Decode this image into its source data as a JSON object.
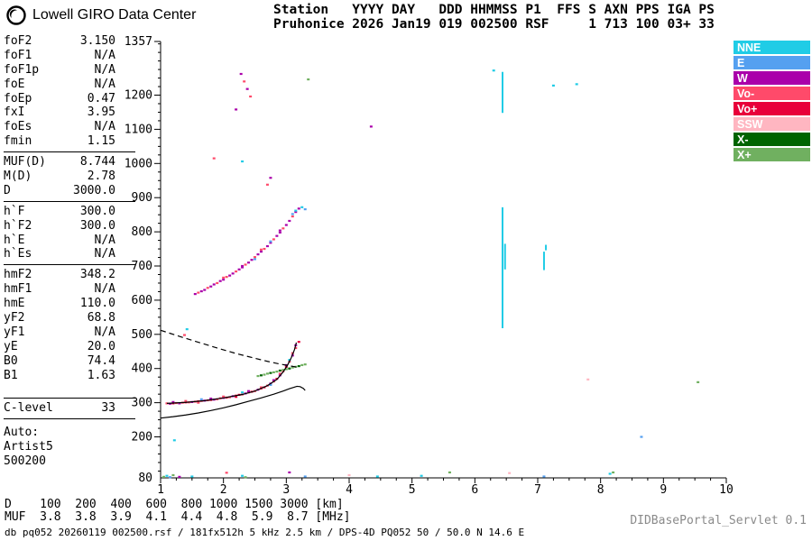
{
  "header": {
    "logo_text": "Lowell GIRO Data Center",
    "station_line1": "Station   YYYY DAY   DDD HHMMSS P1  FFS S AXN PPS IGA PS",
    "station_line2": "Pruhonice 2026 Jan19 019 002500 RSF     1 713 100 03+ 33"
  },
  "parameters": {
    "groups": [
      {
        "rows": [
          [
            "foF2",
            "3.150"
          ],
          [
            "foF1",
            "N/A"
          ],
          [
            "foF1p",
            "N/A"
          ],
          [
            "foE",
            "N/A"
          ],
          [
            "foEp",
            "0.47"
          ],
          [
            "fxI",
            "3.95"
          ],
          [
            "foEs",
            "N/A"
          ],
          [
            "fmin",
            "1.15"
          ]
        ]
      },
      {
        "rows": [
          [
            "MUF(D)",
            "8.744"
          ],
          [
            "M(D)",
            "2.78"
          ],
          [
            "D",
            "3000.0"
          ]
        ]
      },
      {
        "rows": [
          [
            "h`F",
            "300.0"
          ],
          [
            "h`F2",
            "300.0"
          ],
          [
            "h`E",
            "N/A"
          ],
          [
            "h`Es",
            "N/A"
          ]
        ]
      },
      {
        "rows": [
          [
            "hmF2",
            "348.2"
          ],
          [
            "hmF1",
            "N/A"
          ],
          [
            "hmE",
            "110.0"
          ],
          [
            "yF2",
            "68.8"
          ],
          [
            "yF1",
            "N/A"
          ],
          [
            "yE",
            "20.0"
          ],
          [
            "B0",
            "74.4"
          ],
          [
            "B1",
            "1.63"
          ]
        ]
      },
      {
        "rows": [
          [
            "C-level",
            "33"
          ]
        ]
      }
    ],
    "auto_label": "Auto:",
    "auto_lines": [
      "Artist5",
      "500200"
    ]
  },
  "muf_table": {
    "d_label": "D",
    "d_values": [
      "100",
      "200",
      "400",
      "600",
      "800",
      "1000",
      "1500",
      "3000"
    ],
    "d_unit": "[km]",
    "muf_label": "MUF",
    "muf_values": [
      "3.8",
      "3.8",
      "3.9",
      "4.1",
      "4.4",
      "4.8",
      "5.9",
      "8.7"
    ],
    "muf_unit": "[MHz]"
  },
  "footer": {
    "file_info": "db pq052 20260119 002500.rsf / 181fx512h 5 kHz 2.5 km / DPS-4D PQ052 50 / 50.0 N 14.6 E",
    "servlet": "DIDBasePortal_Servlet 0.1"
  },
  "chart_data": {
    "type": "scatter",
    "description": "Ionogram: echo virtual height [km] vs frequency [MHz]",
    "grid": false,
    "legend_position": "top-right-outside",
    "x_axis": {
      "min": 1,
      "max": 10,
      "major_ticks": [
        1,
        2,
        3,
        4,
        5,
        6,
        7,
        8,
        9,
        10
      ],
      "minor_step": 0.25
    },
    "y_axis": {
      "min": 80,
      "max": 1357,
      "tick_labels": [
        1357,
        1200,
        1100,
        1000,
        900,
        800,
        700,
        600,
        500,
        400,
        300,
        200,
        80
      ],
      "minor_step": 25
    },
    "legend": [
      {
        "label": "NNE",
        "color": "#20CCE6"
      },
      {
        "label": "E",
        "color": "#55A0F0"
      },
      {
        "label": "W",
        "color": "#AA00AA"
      },
      {
        "label": "Vo-",
        "color": "#FF4A6A"
      },
      {
        "label": "Vo+",
        "color": "#E8003A"
      },
      {
        "label": "SSW",
        "color": "#FFB6C1"
      },
      {
        "label": "X-",
        "color": "#006400"
      },
      {
        "label": "X+",
        "color": "#70B060"
      }
    ],
    "series": [
      {
        "name": "F-layer o-mode trace",
        "points": [
          [
            1.1,
            298,
            3
          ],
          [
            1.15,
            297,
            2
          ],
          [
            1.2,
            298,
            4
          ],
          [
            1.2,
            302,
            2
          ],
          [
            1.25,
            299,
            3
          ],
          [
            1.3,
            298,
            2
          ],
          [
            1.35,
            300,
            3
          ],
          [
            1.4,
            301,
            4
          ],
          [
            1.4,
            305,
            3
          ],
          [
            1.45,
            301,
            3
          ],
          [
            1.5,
            302,
            2
          ],
          [
            1.55,
            303,
            3
          ],
          [
            1.6,
            304,
            4
          ],
          [
            1.6,
            300,
            3
          ],
          [
            1.65,
            305,
            3
          ],
          [
            1.65,
            310,
            1
          ],
          [
            1.7,
            306,
            2
          ],
          [
            1.75,
            307,
            3
          ],
          [
            1.8,
            308,
            4
          ],
          [
            1.8,
            312,
            2
          ],
          [
            1.85,
            309,
            2
          ],
          [
            1.9,
            310,
            3
          ],
          [
            1.95,
            313,
            3
          ],
          [
            2.0,
            314,
            2
          ],
          [
            2.0,
            318,
            3
          ],
          [
            2.05,
            315,
            4
          ],
          [
            2.1,
            316,
            3
          ],
          [
            2.15,
            319,
            2
          ],
          [
            2.2,
            321,
            3
          ],
          [
            2.2,
            317,
            4
          ],
          [
            2.25,
            323,
            4
          ],
          [
            2.3,
            324,
            3
          ],
          [
            2.3,
            330,
            0
          ],
          [
            2.35,
            327,
            2
          ],
          [
            2.4,
            330,
            3
          ],
          [
            2.4,
            334,
            2
          ],
          [
            2.45,
            332,
            4
          ],
          [
            2.5,
            334,
            3
          ],
          [
            2.55,
            338,
            2
          ],
          [
            2.6,
            341,
            3
          ],
          [
            2.6,
            345,
            3
          ],
          [
            2.65,
            345,
            4
          ],
          [
            2.7,
            350,
            3
          ],
          [
            2.75,
            356,
            2
          ],
          [
            2.75,
            352,
            1
          ],
          [
            2.8,
            362,
            3
          ],
          [
            2.8,
            366,
            2
          ],
          [
            2.85,
            370,
            4
          ],
          [
            2.9,
            380,
            2
          ],
          [
            2.9,
            385,
            3
          ],
          [
            2.95,
            392,
            3
          ],
          [
            3.0,
            405,
            4
          ],
          [
            3.0,
            410,
            2
          ],
          [
            3.05,
            420,
            3
          ],
          [
            3.05,
            425,
            0
          ],
          [
            3.1,
            438,
            2
          ],
          [
            3.1,
            445,
            3
          ],
          [
            3.15,
            460,
            3
          ],
          [
            3.15,
            468,
            2
          ],
          [
            3.2,
            478,
            4
          ]
        ]
      },
      {
        "name": "F-layer x-mode trace",
        "points": [
          [
            2.55,
            378,
            7
          ],
          [
            2.6,
            380,
            6
          ],
          [
            2.65,
            382,
            7
          ],
          [
            2.7,
            385,
            7
          ],
          [
            2.75,
            387,
            6
          ],
          [
            2.8,
            389,
            7
          ],
          [
            2.85,
            391,
            7
          ],
          [
            2.9,
            394,
            6
          ],
          [
            2.95,
            396,
            7
          ],
          [
            3.0,
            398,
            7
          ],
          [
            3.05,
            400,
            6
          ],
          [
            3.1,
            403,
            7
          ],
          [
            3.15,
            405,
            7
          ],
          [
            3.2,
            407,
            6
          ],
          [
            3.25,
            410,
            7
          ],
          [
            3.3,
            412,
            7
          ]
        ]
      },
      {
        "name": "second-hop trace",
        "points": [
          [
            1.55,
            618,
            2
          ],
          [
            1.6,
            622,
            3
          ],
          [
            1.65,
            626,
            2
          ],
          [
            1.7,
            630,
            2
          ],
          [
            1.75,
            636,
            3
          ],
          [
            1.8,
            640,
            2
          ],
          [
            1.85,
            646,
            2
          ],
          [
            1.9,
            650,
            3
          ],
          [
            1.95,
            656,
            2
          ],
          [
            2.0,
            660,
            2
          ],
          [
            2.0,
            666,
            3
          ],
          [
            2.05,
            668,
            3
          ],
          [
            2.1,
            672,
            2
          ],
          [
            2.15,
            678,
            2
          ],
          [
            2.2,
            684,
            3
          ],
          [
            2.25,
            690,
            2
          ],
          [
            2.3,
            696,
            2
          ],
          [
            2.3,
            700,
            2
          ],
          [
            2.35,
            704,
            3
          ],
          [
            2.4,
            710,
            2
          ],
          [
            2.45,
            718,
            2
          ],
          [
            2.5,
            726,
            3
          ],
          [
            2.5,
            720,
            1
          ],
          [
            2.55,
            734,
            2
          ],
          [
            2.6,
            742,
            2
          ],
          [
            2.6,
            748,
            3
          ],
          [
            2.65,
            750,
            3
          ],
          [
            2.7,
            758,
            2
          ],
          [
            2.75,
            768,
            2
          ],
          [
            2.75,
            772,
            1
          ],
          [
            2.8,
            778,
            3
          ],
          [
            2.85,
            788,
            2
          ],
          [
            2.9,
            798,
            2
          ],
          [
            2.9,
            804,
            2
          ],
          [
            2.95,
            810,
            3
          ],
          [
            3.0,
            820,
            2
          ],
          [
            3.05,
            832,
            2
          ],
          [
            3.1,
            845,
            3
          ],
          [
            3.1,
            852,
            1
          ],
          [
            3.15,
            858,
            2
          ],
          [
            3.15,
            862,
            0
          ],
          [
            3.2,
            868,
            2
          ],
          [
            3.25,
            872,
            0
          ],
          [
            3.3,
            866,
            1
          ]
        ]
      },
      {
        "name": "scattered echoes",
        "points": [
          [
            1.05,
            83,
            7
          ],
          [
            1.1,
            86,
            0
          ],
          [
            1.15,
            82,
            1
          ],
          [
            1.2,
            88,
            7
          ],
          [
            1.3,
            83,
            2
          ],
          [
            1.5,
            84,
            0
          ],
          [
            2.05,
            95,
            3
          ],
          [
            2.3,
            86,
            0
          ],
          [
            2.35,
            82,
            7
          ],
          [
            3.05,
            96,
            2
          ],
          [
            3.3,
            84,
            1
          ],
          [
            4.0,
            88,
            5
          ],
          [
            4.45,
            84,
            0
          ],
          [
            5.15,
            86,
            0
          ],
          [
            5.6,
            96,
            7
          ],
          [
            6.55,
            94,
            5
          ],
          [
            7.1,
            84,
            1
          ],
          [
            8.15,
            92,
            0
          ],
          [
            8.2,
            96,
            7
          ],
          [
            1.22,
            190,
            0
          ],
          [
            1.38,
            498,
            3
          ],
          [
            1.42,
            515,
            0
          ],
          [
            1.85,
            1015,
            3
          ],
          [
            2.3,
            1006,
            0
          ],
          [
            2.7,
            938,
            3
          ],
          [
            2.75,
            958,
            2
          ],
          [
            2.28,
            1262,
            2
          ],
          [
            2.33,
            1240,
            3
          ],
          [
            2.38,
            1218,
            2
          ],
          [
            2.43,
            1196,
            3
          ],
          [
            2.2,
            1158,
            2
          ],
          [
            3.35,
            1246,
            7
          ],
          [
            4.35,
            1108,
            2
          ],
          [
            6.3,
            1272,
            0
          ],
          [
            7.25,
            1228,
            0
          ],
          [
            7.62,
            1232,
            0
          ],
          [
            7.8,
            368,
            5
          ],
          [
            9.55,
            360,
            7
          ],
          [
            8.65,
            200,
            1
          ]
        ]
      }
    ],
    "vertical_segments": [
      {
        "x": 6.44,
        "h1": 518,
        "h2": 872,
        "c": 0
      },
      {
        "x": 6.48,
        "h1": 690,
        "h2": 765,
        "c": 0
      },
      {
        "x": 6.44,
        "h1": 1148,
        "h2": 1268,
        "c": 0
      },
      {
        "x": 7.1,
        "h1": 688,
        "h2": 742,
        "c": 0
      },
      {
        "x": 7.13,
        "h1": 746,
        "h2": 762,
        "c": 0
      }
    ],
    "overlay_lines": [
      {
        "name": "electron-density-profile",
        "style": "solid",
        "points": [
          [
            1.0,
            255
          ],
          [
            1.2,
            259
          ],
          [
            1.4,
            264
          ],
          [
            1.6,
            270
          ],
          [
            1.8,
            277
          ],
          [
            2.0,
            285
          ],
          [
            2.2,
            294
          ],
          [
            2.4,
            304
          ],
          [
            2.6,
            314
          ],
          [
            2.8,
            325
          ],
          [
            2.95,
            334
          ],
          [
            3.05,
            341
          ],
          [
            3.12,
            345
          ],
          [
            3.17,
            348
          ],
          [
            3.22,
            347
          ],
          [
            3.27,
            342
          ],
          [
            3.3,
            336
          ]
        ]
      },
      {
        "name": "artist-o-trace-fit",
        "style": "solid",
        "points": [
          [
            1.1,
            298
          ],
          [
            1.4,
            301
          ],
          [
            1.7,
            306
          ],
          [
            2.0,
            314
          ],
          [
            2.3,
            324
          ],
          [
            2.5,
            334
          ],
          [
            2.7,
            350
          ],
          [
            2.85,
            368
          ],
          [
            2.95,
            390
          ],
          [
            3.02,
            410
          ],
          [
            3.08,
            432
          ],
          [
            3.13,
            455
          ],
          [
            3.16,
            476
          ]
        ]
      },
      {
        "name": "muf-transmission-curve",
        "style": "dashed",
        "points": [
          [
            1.0,
            512
          ],
          [
            1.3,
            494
          ],
          [
            1.6,
            477
          ],
          [
            1.9,
            460
          ],
          [
            2.2,
            444
          ],
          [
            2.5,
            430
          ],
          [
            2.7,
            421
          ],
          [
            2.9,
            413
          ],
          [
            3.05,
            408
          ],
          [
            3.2,
            403
          ]
        ]
      }
    ]
  }
}
